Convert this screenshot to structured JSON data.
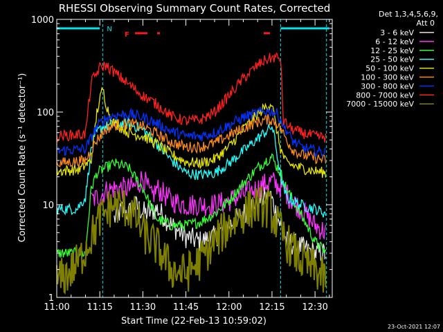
{
  "chart_data": {
    "type": "line",
    "title": "RHESSI Observing Summary Count Rates, Corrected",
    "xlabel": "Start Time (22-Feb-13 10:59:02)",
    "ylabel": "Corrected Count Rate (s⁻¹ detector⁻¹)",
    "y_scale": "log",
    "ylim": [
      1,
      1000
    ],
    "xlim": [
      "11:00",
      "12:36"
    ],
    "x_ticks": [
      "11:00",
      "11:15",
      "11:30",
      "11:45",
      "12:00",
      "12:15",
      "12:30"
    ],
    "y_ticks": [
      "1",
      "10",
      "100",
      "1000"
    ],
    "footer_date": "23-Oct-2021 12:07",
    "legend": {
      "header_line1": "Det 1,3,4,5,6,9,",
      "header_line2": "Att 0",
      "position": "right"
    },
    "flags": {
      "night_label": "N",
      "flare_label": "F",
      "night_color": "#00e5ee",
      "flare_color": "#ff1a1a"
    },
    "series": [
      {
        "name": "3 - 6 keV",
        "color": "#e8e8e8",
        "x": [
          "11:00",
          "11:12",
          "11:15",
          "11:20",
          "11:23",
          "11:25",
          "11:27",
          "11:31",
          "11:35",
          "11:40",
          "11:45",
          "11:50",
          "11:55",
          "12:00",
          "12:05",
          "12:10",
          "12:13",
          "12:14",
          "12:16",
          "12:18",
          "12:20",
          "12:25",
          "12:30",
          "12:34"
        ],
        "y": [
          null,
          null,
          null,
          7,
          9,
          8,
          10,
          8,
          9,
          6,
          4.5,
          4,
          4.5,
          6,
          8,
          11,
          12,
          14,
          9,
          6,
          4,
          3.5,
          3,
          3
        ]
      },
      {
        "name": "6 - 12 keV",
        "color": "#ff33ff",
        "x": [
          "11:00",
          "11:12",
          "11:14",
          "11:17",
          "11:20",
          "11:25",
          "11:28",
          "11:30",
          "11:33",
          "11:35",
          "11:40",
          "11:45",
          "11:50",
          "11:55",
          "12:00",
          "12:05",
          "12:10",
          "12:13",
          "12:15",
          "12:17",
          "12:19",
          "12:21",
          "12:25",
          "12:30",
          "12:34"
        ],
        "y": [
          null,
          11,
          12,
          14,
          15,
          15,
          16,
          20,
          12,
          15,
          11,
          10,
          10,
          10,
          11,
          13,
          15,
          17,
          18,
          16,
          15,
          12,
          9,
          6,
          5
        ]
      },
      {
        "name": "12 - 25 keV",
        "color": "#33ff33",
        "x": [
          "11:00",
          "11:10",
          "11:12",
          "11:14",
          "11:17",
          "11:20",
          "11:25",
          "11:30",
          "11:35",
          "11:40",
          "11:45",
          "11:50",
          "11:55",
          "12:00",
          "12:05",
          "12:10",
          "12:13",
          "12:15",
          "12:16",
          "12:18",
          "12:20",
          "12:25",
          "12:30",
          "12:34"
        ],
        "y": [
          3,
          3,
          15,
          22,
          25,
          28,
          25,
          15,
          7,
          6,
          6,
          6.5,
          8,
          11,
          17,
          25,
          30,
          33,
          28,
          22,
          15,
          8,
          4,
          3
        ]
      },
      {
        "name": "25 - 50 keV",
        "color": "#22ffff",
        "x": [
          "11:00",
          "11:07",
          "11:10",
          "11:12",
          "11:14",
          "11:16",
          "11:18",
          "11:20",
          "11:25",
          "11:30",
          "11:35",
          "11:40",
          "11:45",
          "11:50",
          "11:55",
          "12:00",
          "12:05",
          "12:10",
          "12:13",
          "12:15",
          "12:16",
          "12:18",
          "12:20",
          "12:25",
          "12:30",
          "12:34"
        ],
        "y": [
          9,
          9,
          12,
          40,
          60,
          70,
          70,
          75,
          75,
          65,
          45,
          30,
          22,
          21,
          22,
          28,
          38,
          52,
          62,
          70,
          50,
          20,
          12,
          10,
          9,
          8
        ]
      },
      {
        "name": "50 - 100 keV",
        "color": "#e6e600",
        "x": [
          "11:00",
          "11:08",
          "11:12",
          "11:14",
          "11:16",
          "11:17",
          "11:19",
          "11:22",
          "11:25",
          "11:30",
          "11:35",
          "11:40",
          "11:45",
          "11:50",
          "11:55",
          "12:00",
          "12:05",
          "12:10",
          "12:13",
          "12:15",
          "12:16",
          "12:18",
          "12:20",
          "12:25",
          "12:30",
          "12:34"
        ],
        "y": [
          23,
          24,
          30,
          100,
          180,
          130,
          80,
          70,
          60,
          55,
          45,
          35,
          29,
          28,
          31,
          42,
          65,
          95,
          115,
          125,
          80,
          40,
          28,
          25,
          23,
          22
        ]
      },
      {
        "name": "100 - 300 keV",
        "color": "#ff8c1a",
        "x": [
          "11:00",
          "11:10",
          "11:14",
          "11:17",
          "11:20",
          "11:25",
          "11:30",
          "11:35",
          "11:40",
          "11:45",
          "11:50",
          "11:55",
          "12:00",
          "12:05",
          "12:10",
          "12:13",
          "12:15",
          "12:17",
          "12:19",
          "12:22",
          "12:25",
          "12:30",
          "12:34"
        ],
        "y": [
          28,
          30,
          50,
          65,
          72,
          75,
          70,
          58,
          47,
          42,
          42,
          46,
          56,
          67,
          78,
          83,
          82,
          75,
          58,
          40,
          35,
          32,
          30
        ]
      },
      {
        "name": "300 - 800 keV",
        "color": "#0033ff",
        "x": [
          "11:00",
          "11:10",
          "11:14",
          "11:17",
          "11:20",
          "11:25",
          "11:30",
          "11:35",
          "11:40",
          "11:45",
          "11:50",
          "11:55",
          "12:00",
          "12:05",
          "12:10",
          "12:13",
          "12:15",
          "12:17",
          "12:19",
          "12:22",
          "12:25",
          "12:30",
          "12:34"
        ],
        "y": [
          38,
          40,
          70,
          85,
          92,
          95,
          88,
          75,
          62,
          55,
          55,
          60,
          72,
          88,
          98,
          103,
          102,
          95,
          72,
          50,
          42,
          38,
          37
        ]
      },
      {
        "name": "800 - 7000 keV",
        "color": "#ff2020",
        "x": [
          "11:00",
          "11:10",
          "11:12",
          "11:15",
          "11:17",
          "11:20",
          "11:25",
          "11:30",
          "11:35",
          "11:40",
          "11:45",
          "11:50",
          "11:55",
          "12:00",
          "12:05",
          "12:10",
          "12:13",
          "12:16",
          "12:18",
          "12:19",
          "12:22",
          "12:25",
          "12:30",
          "12:34"
        ],
        "y": [
          55,
          58,
          210,
          300,
          320,
          270,
          200,
          150,
          120,
          90,
          80,
          82,
          100,
          150,
          230,
          320,
          370,
          390,
          380,
          80,
          65,
          60,
          55,
          53
        ]
      },
      {
        "name": "7000 - 15000 keV",
        "color": "#808000",
        "x": [
          "11:00",
          "11:04",
          "11:08",
          "11:12",
          "11:15",
          "11:18",
          "11:20",
          "11:25",
          "11:28",
          "11:30",
          "11:35",
          "11:40",
          "11:45",
          "11:50",
          "11:55",
          "12:00",
          "12:05",
          "12:10",
          "12:14",
          "12:17",
          "12:20",
          "12:25",
          "12:30",
          "12:34"
        ],
        "y": [
          1.5,
          1.8,
          2.5,
          4.5,
          7,
          9,
          10,
          9,
          7,
          5,
          3.5,
          2,
          1.8,
          2.5,
          4,
          6,
          8,
          10,
          9,
          6,
          4,
          2.5,
          2,
          1.5
        ]
      }
    ]
  }
}
